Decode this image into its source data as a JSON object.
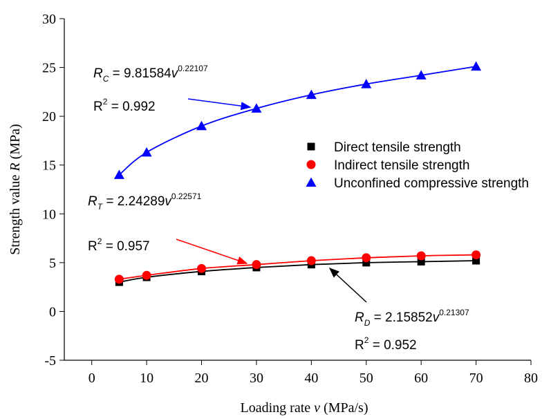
{
  "chart_data": {
    "type": "scatter",
    "x_label": {
      "pre": "Loading rate ",
      "var": "v",
      "post": " (MPa/s)"
    },
    "y_label": {
      "pre": "Strength value ",
      "var": "R",
      "post": " (MPa)"
    },
    "x": [
      5,
      10,
      20,
      30,
      40,
      50,
      60,
      70
    ],
    "series": [
      {
        "name": "Direct tensile strength",
        "color": "#000000",
        "marker": "square",
        "values": [
          3.0,
          3.5,
          4.1,
          4.5,
          4.8,
          5.0,
          5.1,
          5.2
        ]
      },
      {
        "name": "Indirect tensile strength",
        "color": "#ff0000",
        "marker": "circle",
        "values": [
          3.3,
          3.7,
          4.4,
          4.8,
          5.2,
          5.5,
          5.7,
          5.8
        ]
      },
      {
        "name": "Unconfined compressive strength",
        "color": "#0000ff",
        "marker": "triangle",
        "values": [
          14.0,
          16.3,
          19.0,
          20.8,
          22.2,
          23.3,
          24.2,
          25.1
        ]
      }
    ],
    "xlim": [
      -5,
      80
    ],
    "xticks": [
      0,
      10,
      20,
      30,
      40,
      50,
      60,
      70,
      80
    ],
    "ylim": [
      -5,
      30
    ],
    "yticks": [
      -5,
      0,
      5,
      10,
      15,
      20,
      25,
      30
    ],
    "fit_lines": true,
    "annotations": [
      {
        "symbol": "R",
        "subscript": "C",
        "equation": " = 9.81584",
        "variable": "v",
        "exponent": "0.22107",
        "r2_base": "R",
        "r2_exp": "2",
        "r2_value": " = 0.992",
        "color": "#0000ff"
      },
      {
        "symbol": "R",
        "subscript": "T",
        "equation": " = 2.24289",
        "variable": "v",
        "exponent": "0.22571",
        "r2_base": "R",
        "r2_exp": "2",
        "r2_value": " = 0.957",
        "color": "#ff0000"
      },
      {
        "symbol": "R",
        "subscript": "D",
        "equation": " = 2.15852",
        "variable": "v",
        "exponent": "0.21307",
        "r2_base": "R",
        "r2_exp": "2",
        "r2_value": " = 0.952",
        "color": "#000000"
      }
    ]
  }
}
